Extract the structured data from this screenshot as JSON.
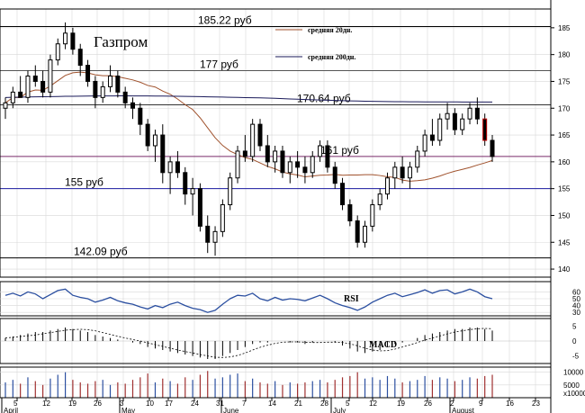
{
  "chart_data": {
    "type": "candlestick",
    "title": "Газпром",
    "y_ticks": [
      140,
      145,
      150,
      155,
      160,
      165,
      170,
      175,
      180,
      185
    ],
    "ylim": [
      138.5,
      188.5
    ],
    "x_ticks": [
      "5",
      "12",
      "19",
      "26",
      "3",
      "10",
      "17",
      "24",
      "31",
      "7",
      "14",
      "21",
      "28",
      "5",
      "12",
      "19",
      "26",
      "2",
      "9",
      "16",
      "23"
    ],
    "months": [
      "April",
      "May",
      "June",
      "July",
      "August"
    ],
    "levels": [
      {
        "label": "185.22 руб",
        "value": 185.22,
        "color": "#000000"
      },
      {
        "label": "177 руб",
        "value": 177,
        "color": "#555555"
      },
      {
        "label": "170.64 руб",
        "value": 170.64,
        "color": "#333333"
      },
      {
        "label": "161 руб",
        "value": 161,
        "color": "#7a2a6a"
      },
      {
        "label": "155 руб",
        "value": 155,
        "color": "#1a1aa0"
      },
      {
        "label": "142.09 руб",
        "value": 142.09,
        "color": "#000000"
      }
    ],
    "legend": [
      {
        "label": "средняя 20дн.",
        "color": "#a0522d"
      },
      {
        "label": "средняя 200дн.",
        "color": "#1a1a5a"
      }
    ],
    "ohlc": [
      [
        170,
        172,
        168,
        171
      ],
      [
        171,
        174,
        170,
        173
      ],
      [
        173,
        176,
        172,
        172
      ],
      [
        172,
        177,
        171,
        176
      ],
      [
        176,
        178,
        174,
        175
      ],
      [
        175,
        177,
        172,
        173
      ],
      [
        173,
        180,
        172,
        179
      ],
      [
        179,
        183,
        178,
        182
      ],
      [
        182,
        186,
        181,
        184
      ],
      [
        184,
        185,
        180,
        181
      ],
      [
        181,
        182,
        176,
        178
      ],
      [
        178,
        179,
        174,
        175
      ],
      [
        175,
        176,
        170,
        172
      ],
      [
        172,
        175,
        171,
        174
      ],
      [
        174,
        178,
        173,
        176
      ],
      [
        176,
        177,
        172,
        173
      ],
      [
        173,
        174,
        170,
        171
      ],
      [
        171,
        172,
        168,
        170
      ],
      [
        170,
        171,
        165,
        167
      ],
      [
        167,
        168,
        162,
        163
      ],
      [
        163,
        166,
        160,
        165
      ],
      [
        165,
        167,
        156,
        158
      ],
      [
        158,
        161,
        154,
        160
      ],
      [
        160,
        162,
        157,
        158
      ],
      [
        158,
        159,
        152,
        154
      ],
      [
        154,
        157,
        150,
        155
      ],
      [
        155,
        156,
        147,
        148
      ],
      [
        148,
        150,
        143,
        145
      ],
      [
        145,
        148,
        142.5,
        147
      ],
      [
        147,
        153,
        146,
        152
      ],
      [
        152,
        158,
        151,
        157
      ],
      [
        157,
        163,
        156,
        162
      ],
      [
        162,
        165,
        160,
        161
      ],
      [
        161,
        168,
        160,
        167
      ],
      [
        167,
        168,
        162,
        163
      ],
      [
        163,
        165,
        159,
        160
      ],
      [
        160,
        163,
        158,
        162
      ],
      [
        162,
        163,
        157,
        158
      ],
      [
        158,
        161,
        156,
        160
      ],
      [
        160,
        162,
        157,
        159
      ],
      [
        159,
        161,
        156,
        158
      ],
      [
        158,
        162,
        157,
        161
      ],
      [
        161,
        164,
        160,
        163
      ],
      [
        163,
        164,
        158,
        159
      ],
      [
        159,
        160,
        155,
        156
      ],
      [
        156,
        157,
        151,
        152
      ],
      [
        152,
        153,
        148,
        149
      ],
      [
        149,
        150,
        144,
        145
      ],
      [
        145,
        149,
        144,
        148
      ],
      [
        148,
        153,
        147,
        152
      ],
      [
        152,
        155,
        151,
        154
      ],
      [
        154,
        158,
        153,
        157
      ],
      [
        157,
        160,
        155,
        159
      ],
      [
        159,
        161,
        156,
        157
      ],
      [
        157,
        160,
        155,
        159
      ],
      [
        159,
        163,
        158,
        162
      ],
      [
        162,
        166,
        161,
        165
      ],
      [
        165,
        168,
        163,
        164
      ],
      [
        164,
        169,
        163,
        168
      ],
      [
        168,
        171,
        166,
        169
      ],
      [
        169,
        170,
        165,
        166
      ],
      [
        166,
        169,
        165,
        168
      ],
      [
        168,
        171,
        167,
        170
      ],
      [
        170,
        172,
        167,
        168
      ],
      [
        168,
        169,
        163,
        164
      ],
      [
        164,
        165,
        160,
        161
      ]
    ],
    "rsi": {
      "label": "RSI",
      "ticks": [
        30,
        40,
        50,
        60
      ],
      "ylim": [
        25,
        75
      ],
      "values": [
        55,
        58,
        54,
        60,
        57,
        50,
        56,
        62,
        64,
        55,
        52,
        50,
        45,
        48,
        52,
        47,
        44,
        42,
        38,
        35,
        40,
        37,
        42,
        45,
        40,
        36,
        34,
        30,
        33,
        42,
        50,
        55,
        54,
        58,
        50,
        47,
        52,
        48,
        50,
        49,
        47,
        51,
        55,
        50,
        44,
        40,
        37,
        33,
        38,
        45,
        50,
        55,
        58,
        53,
        56,
        59,
        63,
        58,
        62,
        63,
        57,
        60,
        64,
        60,
        53,
        50
      ]
    },
    "macd": {
      "label": "MACD",
      "ticks": [
        -5,
        0,
        5
      ],
      "ylim": [
        -7.5,
        7.5
      ],
      "values": [
        1,
        1.5,
        2,
        2.5,
        3,
        3,
        3.5,
        4,
        4.5,
        4,
        3.5,
        3,
        2,
        1.5,
        1,
        0.5,
        0,
        -0.5,
        -1,
        -2,
        -2.5,
        -3,
        -3.5,
        -4,
        -4.5,
        -5,
        -5.5,
        -6,
        -6,
        -5,
        -4,
        -3,
        -2,
        -1,
        -0.5,
        -0.5,
        0,
        0,
        -0.5,
        -0.5,
        -1,
        -0.5,
        0,
        0,
        -0.5,
        -1.5,
        -2.5,
        -3.5,
        -4,
        -3.5,
        -3,
        -2,
        -1,
        -0.5,
        0,
        1,
        2,
        2.5,
        3,
        3.5,
        4,
        4,
        4.5,
        4.5,
        4,
        3.5
      ]
    },
    "volume": {
      "ticks": [
        0,
        5000,
        10000
      ],
      "tick_labels": [
        "",
        "5000",
        "10000"
      ],
      "unit_label": "x10000",
      "ylim": [
        0,
        12000
      ],
      "values": [
        6000,
        7000,
        5500,
        8000,
        6500,
        5000,
        7500,
        9000,
        10000,
        7000,
        6000,
        5500,
        6500,
        7000,
        5000,
        6000,
        5500,
        7000,
        8000,
        9500,
        6000,
        7500,
        6500,
        5500,
        8000,
        7000,
        9000,
        10500,
        7500,
        8000,
        9000,
        9500,
        6500,
        7500,
        6000,
        5500,
        6500,
        5000,
        6000,
        5500,
        6000,
        6500,
        7000,
        6000,
        7000,
        8000,
        8500,
        10000,
        7500,
        8000,
        7000,
        8500,
        7500,
        6000,
        6500,
        7000,
        8500,
        7000,
        8000,
        7500,
        6500,
        7000,
        8000,
        7500,
        8500,
        9000
      ]
    }
  }
}
